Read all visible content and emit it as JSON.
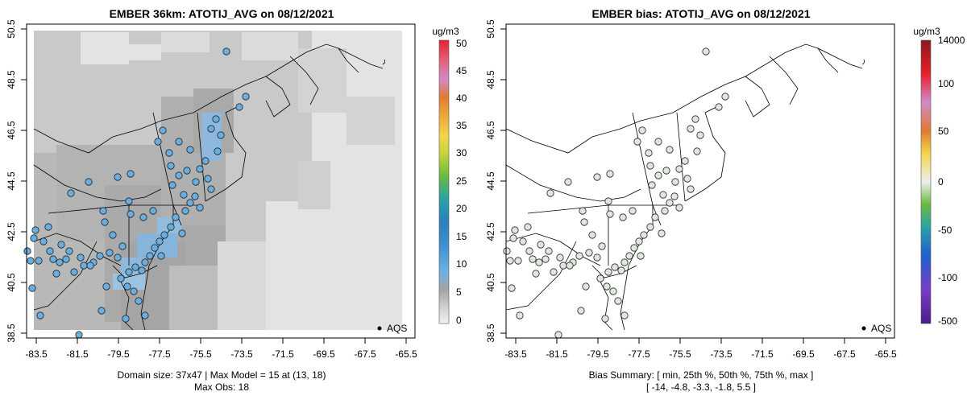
{
  "panels": [
    {
      "title": "EMBER 36km: ATOTIJ_AVG on 08/12/2021",
      "x_ticks": [
        "-83.5",
        "-81.5",
        "-79.5",
        "-77.5",
        "-75.5",
        "-73.5",
        "-71.5",
        "-69.5",
        "-67.5",
        "-65.5"
      ],
      "y_ticks": [
        "38.5",
        "40.5",
        "42.5",
        "44.5",
        "46.5",
        "48.5",
        "50.5"
      ],
      "legend_label": "AQS",
      "footer": [
        "Domain size: 37x47 | Max Model = 15 at (13, 18)",
        "Max Obs: 18"
      ],
      "colorbar": {
        "unit": "ug/m3",
        "labels": [
          "0",
          "5",
          "10",
          "15",
          "20",
          "25",
          "30",
          "35",
          "40",
          "45",
          "50"
        ]
      }
    },
    {
      "title": "EMBER bias: ATOTIJ_AVG on 08/12/2021",
      "x_ticks": [
        "-83.5",
        "-81.5",
        "-79.5",
        "-77.5",
        "-75.5",
        "-73.5",
        "-71.5",
        "-69.5",
        "-67.5",
        "-65.5"
      ],
      "y_ticks": [
        "38.5",
        "40.5",
        "42.5",
        "44.5",
        "46.5",
        "48.5",
        "50.5"
      ],
      "legend_label": "AQS",
      "footer": [
        "Bias Summary: [ min, 25th %, 50th %, 75th %, max ]",
        "[ -14,   -4.8,   -3.3,   -1.8,   5.5 ]"
      ],
      "colorbar": {
        "unit": "ug/m3",
        "labels": [
          "14000",
          "100",
          "50",
          "0",
          "-50",
          "-100",
          "-500"
        ]
      }
    }
  ],
  "colors": {
    "model_low": "#e3e3e3",
    "model_mid": "#c4c4c4",
    "model_high": "#a9a9a9",
    "obs_marker": "#6aaee0",
    "bias_marker": "#dfe8dd"
  }
}
